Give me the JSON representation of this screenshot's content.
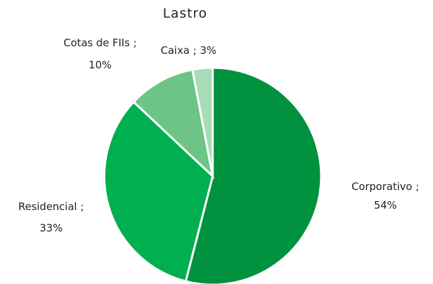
{
  "chart_data": {
    "type": "pie",
    "title": "Lastro",
    "categories": [
      "Corporativo",
      "Residencial",
      "Cotas de FIIs",
      "Caixa"
    ],
    "values": [
      54,
      33,
      10,
      3
    ],
    "value_labels": [
      "54%",
      "33%",
      "10%",
      "3%"
    ],
    "label_separator": ";",
    "colors": [
      "#00923f",
      "#00b050",
      "#6cc486",
      "#a9dbb8"
    ]
  }
}
